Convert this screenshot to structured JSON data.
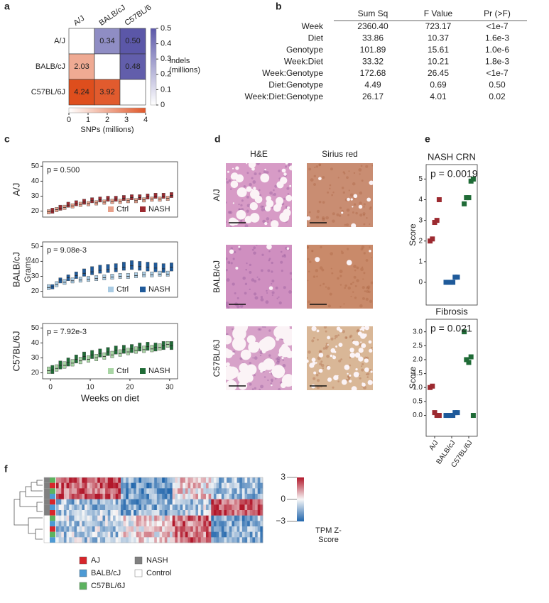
{
  "panel_a": {
    "letter": "a",
    "columns": [
      "A/J",
      "BALB/cJ",
      "C57BL/6"
    ],
    "rows": [
      "A/J",
      "BALB/cJ",
      "C57BL/6J"
    ],
    "matrix": [
      [
        null,
        0.34,
        0.5
      ],
      [
        2.03,
        null,
        0.48
      ],
      [
        4.24,
        3.92,
        null
      ]
    ],
    "value_labels": [
      [
        null,
        "0.34",
        "0.50"
      ],
      [
        "2.03",
        null,
        "0.48"
      ],
      [
        "4.24",
        "3.92",
        null
      ]
    ],
    "indels": {
      "label": "Indels (millions)",
      "lim": [
        0,
        0.5
      ],
      "ticks": [
        0,
        0.1,
        0.2,
        0.3,
        0.4,
        0.5
      ],
      "color": "#5b57a8"
    },
    "snps": {
      "label": "SNPs (millions)",
      "lim": [
        0,
        4
      ],
      "ticks": [
        0,
        1,
        2,
        3,
        4
      ],
      "color": "#e0582a"
    }
  },
  "panel_b": {
    "letter": "b",
    "columns": [
      "Sum Sq",
      "F Value",
      "Pr (>F)"
    ],
    "rows": [
      [
        "Week",
        "2360.40",
        "723.17",
        "<1e-7"
      ],
      [
        "Diet",
        "33.86",
        "10.37",
        "1.6e-3"
      ],
      [
        "Genotype",
        "101.89",
        "15.61",
        "1.0e-6"
      ],
      [
        "Week:Diet",
        "33.32",
        "10.21",
        "1.8e-3"
      ],
      [
        "Week:Genotype",
        "172.68",
        "26.45",
        "<1e-7"
      ],
      [
        "Diet:Genotype",
        "4.49",
        "0.69",
        "0.50"
      ],
      [
        "Week:Diet:Genotype",
        "26.17",
        "4.01",
        "0.02"
      ]
    ]
  },
  "panel_c": {
    "letter": "c",
    "x_label": "Weeks on diet",
    "y_label": "Grams",
    "xlim": [
      -2,
      32
    ],
    "xticks": [
      0,
      10,
      20,
      30
    ],
    "ylim": [
      16,
      53
    ],
    "yticks": [
      20,
      30,
      40,
      50
    ],
    "weeks": [
      0,
      2,
      4,
      6,
      8,
      10,
      12,
      14,
      16,
      18,
      20,
      22,
      24,
      26,
      28,
      30
    ],
    "plots": [
      {
        "strain": "A/J",
        "p": "p = 0.500",
        "series": [
          {
            "name": "Ctrl",
            "color": "#e8a08a",
            "q1": [
              18,
              19.5,
              21,
              22,
              23,
              23.5,
              24,
              24.5,
              25,
              25,
              25.5,
              25.5,
              26,
              26.5,
              26.5,
              27
            ],
            "median": [
              19.5,
              21,
              22.5,
              23.5,
              24.5,
              25,
              25.5,
              26,
              26.5,
              26.5,
              27,
              27,
              27.5,
              28,
              28,
              28.5
            ],
            "q3": [
              21,
              22.5,
              24,
              25,
              26,
              26.5,
              27,
              27.5,
              28,
              28,
              28.5,
              28.5,
              29,
              29.5,
              29.5,
              30
            ]
          },
          {
            "name": "NASH",
            "color": "#9c2a30",
            "q1": [
              18.5,
              20.5,
              22.5,
              23.5,
              24.5,
              25.5,
              26,
              26.5,
              26.5,
              27,
              27.5,
              27.5,
              28,
              28.5,
              28.5,
              29
            ],
            "median": [
              20,
              22,
              24,
              25,
              26,
              27,
              27.5,
              28,
              28,
              28.5,
              29,
              29,
              29.5,
              30,
              30,
              30.5
            ],
            "q3": [
              22,
              24,
              26,
              27,
              28,
              29,
              29.5,
              30,
              30,
              30.5,
              31,
              31,
              31.5,
              32,
              32,
              32.5
            ]
          }
        ]
      },
      {
        "strain": "BALB/cJ",
        "p": "p = 9.08e-3",
        "series": [
          {
            "name": "Ctrl",
            "color": "#a9cbe3",
            "q1": [
              21,
              23,
              24.5,
              25.5,
              26,
              26.5,
              27,
              27.5,
              28,
              28.5,
              28.5,
              29,
              29.5,
              29.5,
              30,
              30
            ],
            "median": [
              22.5,
              24.5,
              26,
              27,
              27.5,
              28,
              28.5,
              29,
              29.5,
              30,
              30,
              30.5,
              31,
              31,
              31.5,
              31.5
            ],
            "q3": [
              24.5,
              26.5,
              28,
              29,
              29.5,
              30,
              30.5,
              31,
              31.5,
              32,
              32,
              32.5,
              33,
              33,
              33.5,
              33.5
            ]
          },
          {
            "name": "NASH",
            "color": "#1f5a9a",
            "q1": [
              21.5,
              25.5,
              27,
              28.5,
              30,
              31,
              32,
              32.5,
              33,
              34,
              34.5,
              34,
              33.5,
              33,
              32.5,
              33.5
            ],
            "median": [
              23,
              27.5,
              29,
              30.5,
              32,
              33,
              34,
              34.5,
              35,
              36,
              37,
              36.5,
              36,
              35.5,
              35,
              36
            ],
            "q3": [
              24.5,
              29,
              31,
              33,
              35,
              36.5,
              37.5,
              38,
              38.5,
              39.5,
              40.5,
              40,
              39.5,
              39,
              38.5,
              39
            ]
          }
        ]
      },
      {
        "strain": "C57BL/6J",
        "p": "p = 7.92e-3",
        "series": [
          {
            "name": "Ctrl",
            "color": "#a8d5a4",
            "q1": [
              19.5,
              21,
              23,
              24.5,
              26,
              27,
              28,
              29,
              30,
              31,
              32,
              33,
              33.5,
              34,
              35,
              37
            ],
            "median": [
              21.5,
              23,
              25,
              26.5,
              28,
              29,
              30,
              31,
              32,
              33,
              34,
              35,
              35.5,
              36,
              37,
              39
            ],
            "q3": [
              24,
              25.5,
              27.5,
              29,
              30.5,
              31.5,
              32.5,
              33.5,
              34.5,
              35.5,
              36.5,
              37.5,
              38,
              38.5,
              39.5,
              41
            ]
          },
          {
            "name": "NASH",
            "color": "#1f6b36",
            "q1": [
              19.5,
              22.5,
              24.5,
              26.5,
              28.5,
              29.5,
              30.5,
              31.5,
              32.5,
              33,
              33.5,
              34.5,
              35,
              34.5,
              35.5,
              35.5
            ],
            "median": [
              22,
              25,
              27,
              29,
              31,
              32,
              33,
              34,
              35,
              35.5,
              36,
              37,
              37.5,
              37,
              38,
              38
            ],
            "q3": [
              25,
              28,
              30,
              32,
              34,
              35,
              36,
              37,
              38,
              38.5,
              39,
              40,
              40.5,
              40,
              41,
              41
            ]
          }
        ]
      }
    ]
  },
  "panel_d": {
    "letter": "d",
    "columns": [
      "H&E",
      "Sirius red"
    ],
    "rows": [
      "A/J",
      "BALB/cJ",
      "C57BL/6J"
    ]
  },
  "panel_e": {
    "letter": "e",
    "y_label": "Score",
    "categories": [
      "A/J",
      "BALB/cJ",
      "C57BL/6J"
    ],
    "colors": [
      "#9c2a30",
      "#1f5a9a",
      "#1f6b36"
    ],
    "plots": [
      {
        "title": "NASH CRN",
        "p": "p =  0.0019",
        "ylim": [
          -1.1,
          5.7
        ],
        "yticks": [
          0,
          1,
          2,
          3,
          4,
          5
        ],
        "groups": [
          [
            2,
            2.1,
            2.9,
            3,
            4
          ],
          [
            0,
            0,
            0,
            0,
            0.25,
            0.25
          ],
          [
            3.8,
            4.1,
            4.1,
            4.9,
            5
          ]
        ]
      },
      {
        "title": "Fibrosis",
        "p": "p =  0.021",
        "ylim": [
          -0.75,
          3.45
        ],
        "yticks": [
          {
            "value": 0,
            "label": "0.0"
          },
          {
            "value": 0.5,
            "label": "0.5"
          },
          {
            "value": 1,
            "label": "1.0"
          },
          {
            "value": 1.5,
            "label": "1.5"
          },
          {
            "value": 2,
            "label": "2.0"
          },
          {
            "value": 2.5,
            "label": "2.5"
          },
          {
            "value": 3,
            "label": "3.0"
          }
        ],
        "groups": [
          [
            1,
            1.05,
            0.1,
            0,
            0
          ],
          [
            0,
            0,
            0,
            0,
            0.1,
            0.1
          ],
          [
            3,
            2,
            1.9,
            2.1,
            0
          ]
        ]
      }
    ]
  },
  "panel_f": {
    "letter": "f",
    "colorbar": {
      "label": "TPM Z-Score",
      "lim": [
        -3,
        3
      ],
      "ticks": [
        3,
        0,
        {
          "value": -3,
          "label": "−3"
        }
      ]
    },
    "strains": [
      {
        "name": "AJ",
        "color": "#d7262b"
      },
      {
        "name": "BALB/cJ",
        "color": "#4d9ad4"
      },
      {
        "name": "C57BL/6J",
        "color": "#5cb25f"
      }
    ],
    "diets": [
      {
        "name": "NASH",
        "color": "#808080"
      },
      {
        "name": "Control",
        "color": "#ffffff"
      }
    ]
  }
}
